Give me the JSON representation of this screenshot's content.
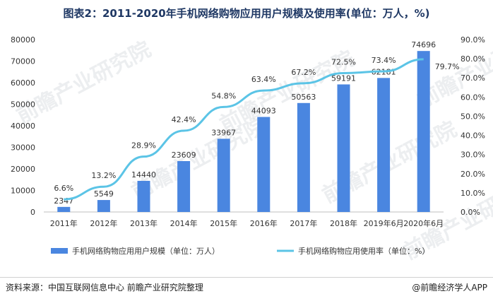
{
  "title": "图表2：2011-2020年手机网络购物应用用户规模及使用率(单位：万人，%)",
  "watermark": "前瞻产业研究院",
  "source": "资料来源：中国互联网信息中心 前瞻产业研究院整理",
  "brand": "@前瞻经济学人APP",
  "colors": {
    "bar": "#4a86e0",
    "line": "#5bc4e6",
    "title": "#1f3864"
  },
  "chart_data": {
    "type": "bar+line",
    "categories": [
      "2011年",
      "2012年",
      "2013年",
      "2014年",
      "2015年",
      "2016年",
      "2017年",
      "2018年",
      "2019年6月",
      "2020年6月"
    ],
    "series": [
      {
        "name": "手机网络购物应用用户规模（单位：万人）",
        "type": "bar",
        "axis": "left",
        "values": [
          2347,
          5549,
          14440,
          23609,
          33967,
          44093,
          50563,
          59191,
          62181,
          74696
        ]
      },
      {
        "name": "手机网络购物应用使用率（单位：%）",
        "type": "line",
        "axis": "right",
        "values": [
          6.6,
          13.2,
          28.9,
          42.4,
          54.8,
          63.4,
          67.2,
          72.5,
          73.4,
          79.7
        ],
        "labels": [
          "6.6%",
          "13.2%",
          "28.9%",
          "42.4%",
          "54.8%",
          "63.4%",
          "67.2%",
          "72.5%",
          "73.4%",
          "79.7%"
        ]
      }
    ],
    "y_left": {
      "ylim": [
        0,
        80000
      ],
      "ticks": [
        0,
        10000,
        20000,
        30000,
        40000,
        50000,
        60000,
        70000,
        80000
      ]
    },
    "y_right": {
      "ylim": [
        0,
        90
      ],
      "ticks": [
        "0.0%",
        "10.0%",
        "20.0%",
        "30.0%",
        "40.0%",
        "50.0%",
        "60.0%",
        "70.0%",
        "80.0%",
        "90.0%"
      ]
    },
    "legend": "bottom",
    "grid": false
  }
}
